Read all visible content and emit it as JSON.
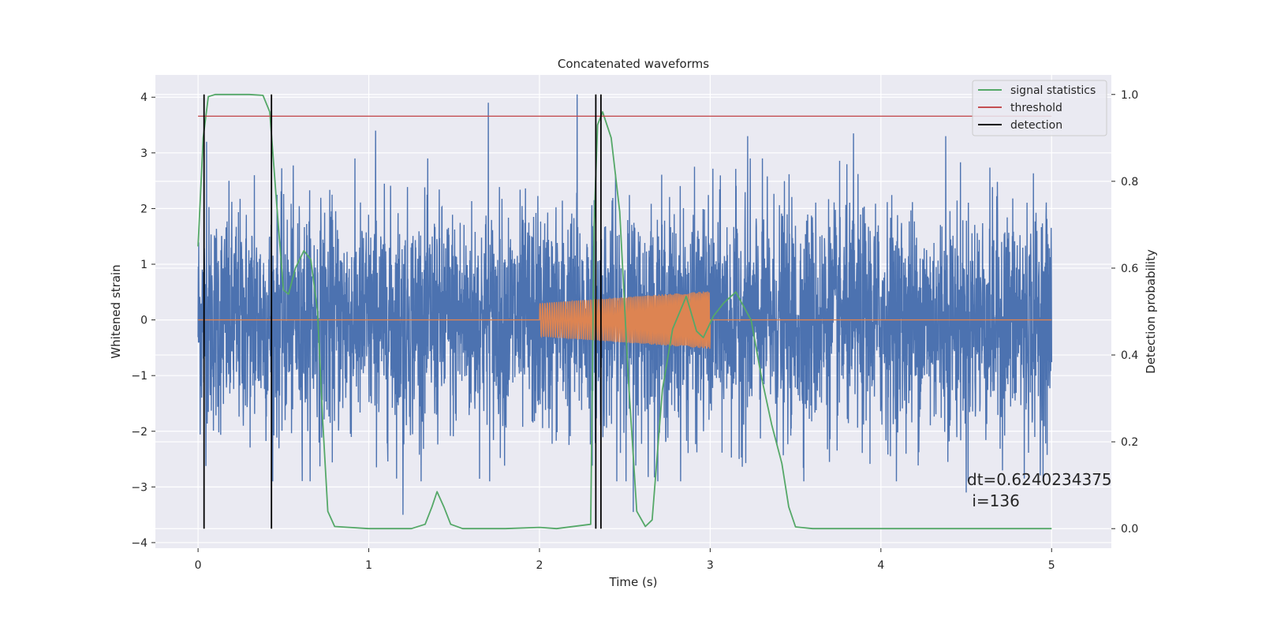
{
  "chart_data": {
    "type": "line",
    "title": "Concatenated waveforms",
    "xlabel": "Time (s)",
    "ylabel": "Whitened strain",
    "ylabel_right": "Detection probability",
    "xlim": [
      -0.25,
      5.35
    ],
    "ylim": [
      -4.1,
      4.4
    ],
    "ylim_right": [
      -0.045,
      1.045
    ],
    "x_ticks": [
      "0",
      "1",
      "2",
      "3",
      "4",
      "5"
    ],
    "x_tick_values": [
      0,
      1,
      2,
      3,
      4,
      5
    ],
    "y_ticks": [
      "−4",
      "−3",
      "−2",
      "−1",
      "0",
      "1",
      "2",
      "3",
      "4"
    ],
    "y_tick_values": [
      -4,
      -3,
      -2,
      -1,
      0,
      1,
      2,
      3,
      4
    ],
    "y_right_ticks": [
      "0.0",
      "0.2",
      "0.4",
      "0.6",
      "0.8",
      "1.0"
    ],
    "y_right_tick_values": [
      0,
      0.2,
      0.4,
      0.6,
      0.8,
      1.0
    ],
    "grid": true,
    "legend_placement": "top-right",
    "series": [
      {
        "key": "strain",
        "axis": "left",
        "color": "#4c72b0",
        "description": "noise",
        "x_range": [
          0,
          5
        ],
        "typical_amplitude": 1.0,
        "spikes": [
          {
            "x": 0.05,
            "y": 3.2
          },
          {
            "x": 0.33,
            "y": 2.6
          },
          {
            "x": 0.33,
            "y": -3.25
          },
          {
            "x": 1.04,
            "y": 3.4
          },
          {
            "x": 1.2,
            "y": -3.5
          },
          {
            "x": 1.7,
            "y": 3.9
          },
          {
            "x": 2.22,
            "y": 4.05
          },
          {
            "x": 2.55,
            "y": -3.45
          },
          {
            "x": 3.22,
            "y": 3.3
          },
          {
            "x": 3.84,
            "y": 3.35
          },
          {
            "x": 4.38,
            "y": 3.3
          },
          {
            "x": 4.5,
            "y": -3.1
          },
          {
            "x": 4.84,
            "y": -2.85
          }
        ]
      },
      {
        "key": "chirp",
        "axis": "left",
        "color": "#dd8452",
        "description": "injected waveform",
        "baseline": 0,
        "x_range": [
          2.0,
          3.0
        ],
        "amplitude_start": 0.3,
        "amplitude_end": 0.52
      },
      {
        "key": "signal_statistics",
        "name": "signal statistics",
        "axis": "right",
        "color": "#55a868",
        "x": [
          0,
          0.03,
          0.06,
          0.1,
          0.2,
          0.3,
          0.38,
          0.42,
          0.46,
          0.5,
          0.53,
          0.57,
          0.62,
          0.66,
          0.7,
          0.73,
          0.76,
          0.8,
          1.0,
          1.25,
          1.33,
          1.37,
          1.4,
          1.44,
          1.48,
          1.55,
          1.8,
          2.0,
          2.1,
          2.3,
          2.32,
          2.34,
          2.37,
          2.42,
          2.47,
          2.52,
          2.57,
          2.62,
          2.66,
          2.72,
          2.78,
          2.86,
          2.92,
          2.96,
          3.02,
          3.08,
          3.15,
          3.24,
          3.3,
          3.36,
          3.42,
          3.46,
          3.5,
          3.6,
          4.0,
          4.5,
          5.0
        ],
        "y": [
          0.65,
          0.9,
          0.995,
          1.0,
          1.0,
          1.0,
          0.998,
          0.96,
          0.75,
          0.55,
          0.54,
          0.6,
          0.64,
          0.62,
          0.5,
          0.25,
          0.04,
          0.005,
          0.0,
          0.0,
          0.01,
          0.05,
          0.085,
          0.05,
          0.01,
          0.0,
          0.0,
          0.003,
          0.0,
          0.01,
          0.7,
          0.93,
          0.96,
          0.9,
          0.73,
          0.35,
          0.04,
          0.005,
          0.02,
          0.32,
          0.46,
          0.535,
          0.455,
          0.44,
          0.49,
          0.52,
          0.545,
          0.48,
          0.35,
          0.24,
          0.15,
          0.05,
          0.004,
          0.0,
          0.0,
          0.0,
          0.0
        ]
      },
      {
        "key": "threshold",
        "name": "threshold",
        "axis": "right",
        "color": "#c44e52",
        "x": [
          0,
          5
        ],
        "y": [
          0.95,
          0.95
        ]
      },
      {
        "key": "detection",
        "name": "detection",
        "axis": "right",
        "color": "#000000",
        "lines_x": [
          0.035,
          0.43,
          2.33,
          2.36
        ],
        "y_range": [
          0,
          1
        ]
      }
    ],
    "annotation": {
      "line1": "dt=0.6240234375",
      "line2": " i=136",
      "x": 4.5,
      "y": -3.0
    }
  }
}
